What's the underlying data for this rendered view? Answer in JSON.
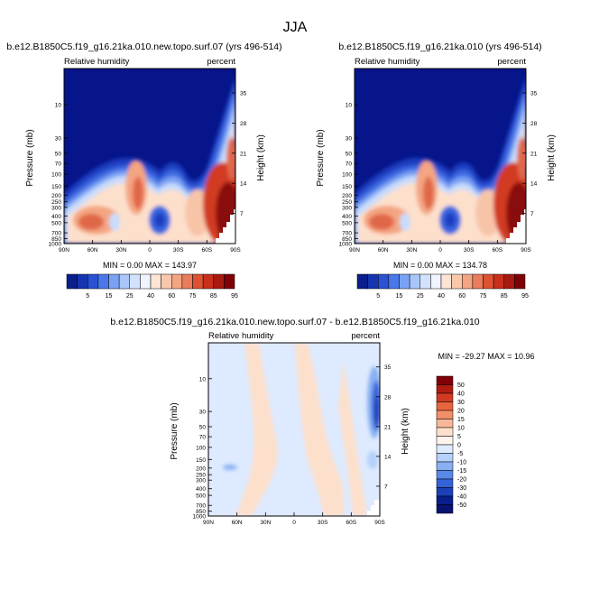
{
  "figure_title": "JJA",
  "labels": {
    "variable": "Relative humidity",
    "units": "percent",
    "ylabel": "Pressure (mb)",
    "ylabel_right": "Height (km)"
  },
  "panels": [
    {
      "id": "left",
      "title": "b.e12.B1850C5.f19_g16.21ka.010.new.topo.surf.07 (yrs 496-514)",
      "minmax": "MIN =   0.00   MAX = 143.97"
    },
    {
      "id": "right",
      "title": "b.e12.B1850C5.f19_g16.21ka.010 (yrs 496-514)",
      "minmax": "MIN =   0.00   MAX = 134.78"
    },
    {
      "id": "diff",
      "title": "b.e12.B1850C5.f19_g16.21ka.010.new.topo.surf.07 - b.e12.B1850C5.f19_g16.21ka.010",
      "minmax": "MIN = -29.27   MAX =  10.96"
    }
  ],
  "chart_data": [
    {
      "type": "contour",
      "panel": "left",
      "x_ticks": [
        "90N",
        "60N",
        "30N",
        "0",
        "30S",
        "60S",
        "90S"
      ],
      "y_ticks": [
        "10",
        "30",
        "50",
        "70",
        "100",
        "150",
        "200",
        "250",
        "300",
        "400",
        "500",
        "700",
        "850",
        "1000"
      ],
      "y2_ticks": [
        "35",
        "28",
        "21",
        "14",
        "7"
      ],
      "ylim": [
        1000,
        3
      ],
      "xlim": [
        "90N",
        "90S"
      ],
      "min": 0.0,
      "max": 143.97
    },
    {
      "type": "contour",
      "panel": "right",
      "x_ticks": [
        "90N",
        "60N",
        "30N",
        "0",
        "30S",
        "60S",
        "90S"
      ],
      "y_ticks": [
        "10",
        "30",
        "50",
        "70",
        "100",
        "150",
        "200",
        "250",
        "300",
        "400",
        "500",
        "700",
        "850",
        "1000"
      ],
      "y2_ticks": [
        "35",
        "28",
        "21",
        "14",
        "7"
      ],
      "ylim": [
        1000,
        3
      ],
      "xlim": [
        "90N",
        "90S"
      ],
      "min": 0.0,
      "max": 134.78
    },
    {
      "type": "contour",
      "panel": "diff",
      "x_ticks": [
        "90N",
        "60N",
        "30N",
        "0",
        "30S",
        "60S",
        "90S"
      ],
      "y_ticks": [
        "10",
        "30",
        "50",
        "70",
        "100",
        "150",
        "200",
        "250",
        "300",
        "400",
        "500",
        "700",
        "850",
        "1000"
      ],
      "y2_ticks": [
        "35",
        "28",
        "21",
        "14",
        "7"
      ],
      "ylim": [
        1000,
        3
      ],
      "xlim": [
        "90N",
        "90S"
      ],
      "min": -29.27,
      "max": 10.96
    }
  ],
  "colorbar_abs": {
    "labels": [
      "5",
      "15",
      "25",
      "40",
      "60",
      "75",
      "85",
      "95"
    ],
    "colors": [
      "#0a1e8c",
      "#1535b0",
      "#2a52d2",
      "#4a78ea",
      "#7aa2f4",
      "#a9c6fa",
      "#d2e2fc",
      "#f0f4ff",
      "#fde4d4",
      "#f9c8ac",
      "#f4a582",
      "#ea7c5c",
      "#dc5232",
      "#c8301c",
      "#a81a10",
      "#800008"
    ]
  },
  "colorbar_diff": {
    "labels": [
      "50",
      "40",
      "30",
      "20",
      "15",
      "10",
      "5",
      "0",
      "-5",
      "-10",
      "-15",
      "-20",
      "-30",
      "-40",
      "-50"
    ],
    "colors": [
      "#800008",
      "#b01c12",
      "#d23a22",
      "#e8643e",
      "#f28e68",
      "#f8b898",
      "#fde0cc",
      "#fff5ee",
      "#ddeaff",
      "#b6d0fa",
      "#88b0f2",
      "#5a88e8",
      "#3462d8",
      "#1c40b8",
      "#0a1e8c",
      "#061470"
    ]
  }
}
